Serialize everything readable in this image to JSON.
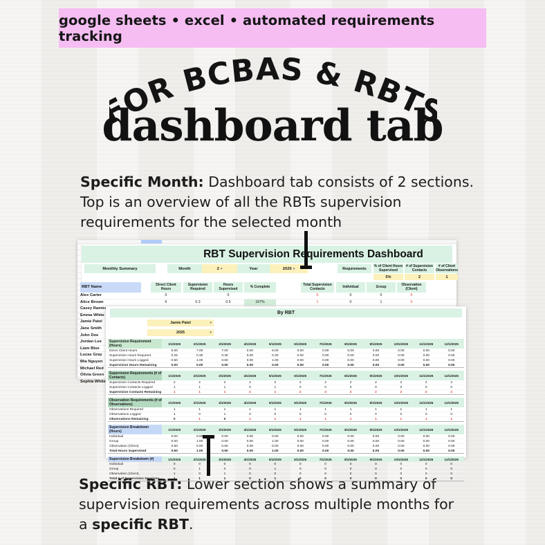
{
  "banner": {
    "text": "google sheets • excel • automated requirements tracking",
    "bg_color": "#f5bdf2"
  },
  "hero": {
    "arched_title": "FOR BCBAS & RBTS",
    "main_title": "dashboard tab"
  },
  "para_top": {
    "bold": "Specific Month:",
    "text": " Dashboard tab consists of 2 sections.\nTop is an overview of all the RBTs supervision\nrequirements for the selected month"
  },
  "para_bottom": {
    "bold": "Specific RBT:",
    "text": " Lower section shows a summary of\nsupervision requirements across multiple months for\na ",
    "bold2": "specific RBT",
    "text2": "."
  },
  "icons": {
    "dropdown": "▾"
  },
  "colors": {
    "pink": "#f5bdf2",
    "mint": "#d9f2e4",
    "section_green": "#c8e8cf",
    "section_green_dark": "#b3d9bf",
    "section_blue": "#c5d8f6",
    "yellow": "#fcf1bb",
    "header_blue": "#c9daf8",
    "alert_red": "#e03e2d",
    "pct_green": "#d3ecd9"
  },
  "sheet1": {
    "title": "RBT Supervision Requirements Dashboard",
    "controls": {
      "summary": "Monthly Summary",
      "month_label": "Month",
      "month_value": "2",
      "year_label": "Year",
      "year_value": "2025"
    },
    "requirements": {
      "label": "Requirements",
      "headers": [
        "% of Client Hours Supervised",
        "# of Supervision Contacts",
        "# of Client Observations"
      ],
      "values": [
        "5%",
        "2",
        "1"
      ]
    },
    "left_headers": [
      "RBT Name",
      "Direct Client Hours",
      "Supervision Required",
      "Hours Supervised",
      "% Complete"
    ],
    "right_headers": [
      "Total Supervision Contacts",
      "Individual",
      "Group",
      "Observation (Client)"
    ],
    "rows": [
      {
        "name": "Alex Carter",
        "left": [
          "0",
          "",
          "0",
          ""
        ],
        "right": [
          "0",
          "0",
          "0",
          "0"
        ],
        "right_red": [
          true,
          false,
          false,
          true
        ]
      },
      {
        "name": "Alice Brown",
        "left": [
          "6",
          "0.3",
          "0.5",
          "167%"
        ],
        "right": [
          "1",
          "0",
          "1",
          "0"
        ],
        "right_red": [
          true,
          false,
          false,
          true
        ]
      },
      {
        "name": "Casey Ramirez",
        "left": [
          "",
          "0.2",
          "0.4",
          "157%"
        ],
        "right": [
          "1",
          "1",
          "0",
          "0"
        ],
        "right_red": [
          true,
          false,
          false,
          true
        ]
      },
      {
        "name": "Emma White",
        "left": [
          "",
          "",
          "",
          ""
        ],
        "right": [
          "",
          "",
          "",
          ""
        ]
      },
      {
        "name": "Jamie Patel",
        "left": [
          "",
          "",
          "",
          ""
        ],
        "right": [
          "",
          "",
          "",
          ""
        ]
      },
      {
        "name": "Jane Smith",
        "left": [
          "",
          "",
          "",
          ""
        ],
        "right": [
          "",
          "",
          "",
          ""
        ]
      },
      {
        "name": "John Doe",
        "left": [
          "",
          "",
          "",
          ""
        ],
        "right": [
          "",
          "",
          "",
          ""
        ]
      },
      {
        "name": "Jordan Lee",
        "left": [
          "",
          "",
          "",
          ""
        ],
        "right": [
          "",
          "",
          "",
          ""
        ]
      },
      {
        "name": "Liam Blue",
        "left": [
          "",
          "",
          "",
          ""
        ],
        "right": [
          "",
          "",
          "",
          ""
        ]
      },
      {
        "name": "Lucas Gray",
        "left": [
          "",
          "",
          "",
          ""
        ],
        "right": [
          "",
          "",
          "",
          ""
        ]
      },
      {
        "name": "Mia Nguyen",
        "left": [
          "",
          "",
          "",
          ""
        ],
        "right": [
          "",
          "",
          "",
          ""
        ]
      },
      {
        "name": "Michael Red",
        "left": [
          "",
          "",
          "",
          ""
        ],
        "right": [
          "",
          "",
          "",
          ""
        ]
      },
      {
        "name": "Olivia Green",
        "left": [
          "",
          "",
          "",
          ""
        ],
        "right": [
          "",
          "",
          "",
          ""
        ]
      },
      {
        "name": "Sophia White",
        "left": [
          "",
          "",
          "",
          ""
        ],
        "right": [
          "",
          "",
          "",
          ""
        ]
      }
    ]
  },
  "sheet2": {
    "title": "By RBT",
    "rbt_selected": "Jamie Patel",
    "year_selected": "2025",
    "months": [
      "1/1/2025",
      "2/1/2025",
      "3/1/2025",
      "4/1/2025",
      "5/1/2025",
      "6/1/2025",
      "7/1/2025",
      "8/1/2025",
      "9/1/2025",
      "10/1/2025",
      "11/1/2025",
      "12/1/2025"
    ],
    "sections": [
      {
        "label": "Supervision Requirement (Hours)",
        "style": "lgreen",
        "rows": [
          {
            "label": "Direct Client Hours",
            "values": [
              "5.00",
              "7.00",
              "7.00",
              "0.00",
              "6.00",
              "0.00",
              "0.00",
              "0.00",
              "0.00",
              "0.00",
              "0.00",
              "0.00"
            ]
          },
          {
            "label": "Supervision Hours Required",
            "values": [
              "0.25",
              "0.35",
              "0.35",
              "0.00",
              "0.30",
              "0.00",
              "0.00",
              "0.00",
              "0.00",
              "0.00",
              "0.00",
              "0.00"
            ]
          },
          {
            "label": "Supervision Hours Logged",
            "values": [
              "0.50",
              "1.00",
              "0.50",
              "0.00",
              "1.00",
              "0.00",
              "0.00",
              "0.00",
              "0.00",
              "0.00",
              "0.00",
              "0.00"
            ]
          },
          {
            "label": "Supervision Hours Remaining",
            "bold": true,
            "values": [
              "0.00",
              "0.00",
              "0.00",
              "0.00",
              "0.00",
              "0.00",
              "0.00",
              "0.00",
              "0.00",
              "0.00",
              "0.00",
              "0.00"
            ]
          }
        ]
      },
      {
        "label": "Supervision Requirements (# of Contacts)",
        "style": "lgreen2",
        "rows": [
          {
            "label": "Supervision Contacts Required",
            "values": [
              "2",
              "2",
              "2",
              "2",
              "2",
              "2",
              "2",
              "2",
              "2",
              "2",
              "2",
              "2"
            ]
          },
          {
            "label": "Supervision Contacts Logged",
            "values": [
              "1",
              "1",
              "1",
              "0",
              "1",
              "0",
              "0",
              "0",
              "0",
              "0",
              "0",
              "0"
            ]
          },
          {
            "label": "Supervision Contacts Remaining",
            "bold": true,
            "red": true,
            "values": [
              "1",
              "1",
              "1",
              "2",
              "1",
              "2",
              "2",
              "2",
              "2",
              "2",
              "2",
              "2"
            ]
          }
        ]
      },
      {
        "label": "Observation Requirements (# of Observations)",
        "style": "lgreen2",
        "rows": [
          {
            "label": "Observations Required",
            "values": [
              "1",
              "1",
              "1",
              "1",
              "1",
              "1",
              "1",
              "1",
              "1",
              "1",
              "1",
              "1"
            ]
          },
          {
            "label": "Observations Logged",
            "values": [
              "1",
              "0",
              "1",
              "0",
              "0",
              "0",
              "0",
              "0",
              "0",
              "0",
              "0",
              "0"
            ]
          },
          {
            "label": "Observations Remaining",
            "bold": true,
            "red": true,
            "values": [
              "0",
              "1",
              "0",
              "1",
              "1",
              "1",
              "1",
              "1",
              "1",
              "1",
              "1",
              "1"
            ]
          }
        ]
      },
      {
        "label": "Supervision Breakdown (Hours)",
        "style": "lblue",
        "rows": [
          {
            "label": "Individual",
            "values": [
              "0.00",
              "0.00",
              "0.00",
              "0.00",
              "0.00",
              "0.00",
              "0.00",
              "0.00",
              "0.00",
              "0.00",
              "0.00",
              "0.00"
            ]
          },
          {
            "label": "Group",
            "values": [
              "0.00",
              "1.00",
              "0.00",
              "0.00",
              "1.00",
              "0.00",
              "0.00",
              "0.00",
              "0.00",
              "0.00",
              "0.00",
              "0.00"
            ]
          },
          {
            "label": "Observation (Client)",
            "values": [
              "0.50",
              "0.00",
              "0.50",
              "0.00",
              "0.00",
              "0.00",
              "0.00",
              "0.00",
              "0.00",
              "0.00",
              "0.00",
              "0.00"
            ]
          },
          {
            "label": "Total Hours Supervised",
            "bold": true,
            "values": [
              "0.50",
              "1.00",
              "0.50",
              "0.00",
              "1.00",
              "0.00",
              "0.00",
              "0.00",
              "0.00",
              "0.00",
              "0.00",
              "0.00"
            ]
          }
        ]
      },
      {
        "label": "Supervision Breakdown (#)",
        "style": "lblue",
        "rows": [
          {
            "label": "Individual",
            "values": [
              "0",
              "0",
              "0",
              "0",
              "0",
              "0",
              "0",
              "0",
              "0",
              "0",
              "0",
              "0"
            ]
          },
          {
            "label": "Group",
            "values": [
              "0",
              "1",
              "0",
              "0",
              "1",
              "0",
              "0",
              "0",
              "0",
              "0",
              "0",
              "0"
            ]
          },
          {
            "label": "Observation (Client)",
            "values": [
              "1",
              "0",
              "1",
              "0",
              "0",
              "0",
              "0",
              "0",
              "0",
              "0",
              "0",
              "0"
            ]
          },
          {
            "label": "Total # of Supervision Sessions",
            "bold": true,
            "values": [
              "1",
              "1",
              "1",
              "0",
              "1",
              "0",
              "0",
              "0",
              "0",
              "0",
              "0",
              "0"
            ]
          }
        ]
      }
    ]
  }
}
